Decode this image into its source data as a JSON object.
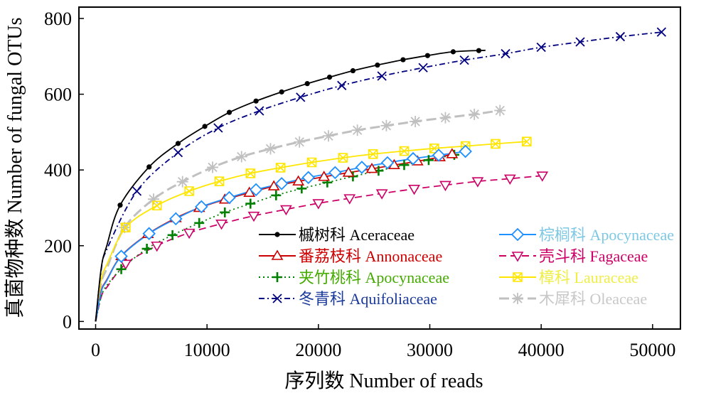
{
  "chart_data": {
    "type": "line",
    "title": "",
    "xlabel": "序列数 Number of reads",
    "ylabel": "真菌物种数 Number of fungal OTUs",
    "xlim": [
      -1500,
      52500
    ],
    "ylim": [
      -20,
      830
    ],
    "xticks": [
      0,
      10000,
      20000,
      30000,
      40000,
      50000
    ],
    "xtick_labels": [
      "0",
      "10000",
      "20000",
      "30000",
      "40000",
      "50000"
    ],
    "yticks": [
      0,
      200,
      400,
      600,
      800
    ],
    "ytick_labels": [
      "0",
      "200",
      "400",
      "600",
      "800"
    ],
    "grid": false,
    "legend_position": "center-right, two columns",
    "series": [
      {
        "name": "槭树科 Aceraceae",
        "color": "#000000",
        "dash": "",
        "marker": "dot",
        "marker_x": [
          2200,
          4800,
          7400,
          9800,
          12000,
          14400,
          16700,
          19000,
          21000,
          23100,
          25300,
          27600,
          29800,
          32100,
          34400
        ],
        "x": [
          0,
          500,
          1000,
          2200,
          4800,
          7400,
          9800,
          12000,
          14400,
          16700,
          19000,
          21000,
          23100,
          25300,
          27600,
          29800,
          32100,
          35000
        ],
        "y": [
          0,
          140,
          200,
          307,
          408,
          470,
          515,
          552,
          582,
          606,
          628,
          645,
          662,
          677,
          691,
          702,
          712,
          716
        ]
      },
      {
        "name": "番荔枝科 Annonaceae",
        "color": "#cc0000",
        "dash": "",
        "marker": "triangle-up",
        "marker_x": [
          2300,
          4700,
          7200,
          9300,
          11600,
          13800,
          16000,
          18200,
          20500,
          22700,
          24800,
          26800,
          28900,
          30900,
          32000
        ],
        "x": [
          0,
          500,
          1000,
          2300,
          4700,
          7200,
          9300,
          11600,
          13800,
          16000,
          18200,
          20500,
          22700,
          24800,
          26800,
          28900,
          30900,
          32000
        ],
        "y": [
          0,
          80,
          110,
          173,
          231,
          273,
          300,
          322,
          340,
          357,
          370,
          382,
          393,
          403,
          413,
          423,
          434,
          442
        ]
      },
      {
        "name": "夹竹桃科 Apocynaceae",
        "color": "#008000",
        "dash": "2,4",
        "marker": "plus",
        "marker_x": [
          2300,
          4600,
          6900,
          9300,
          11600,
          13900,
          16200,
          18500,
          20800,
          23100,
          25400,
          27700,
          29900,
          32200
        ],
        "x": [
          0,
          500,
          1000,
          2300,
          4600,
          6900,
          9300,
          11600,
          13900,
          16200,
          18500,
          20800,
          23100,
          25400,
          27700,
          29900,
          32200
        ],
        "y": [
          0,
          65,
          95,
          138,
          192,
          228,
          260,
          288,
          311,
          333,
          351,
          367,
          383,
          398,
          413,
          426,
          440
        ]
      },
      {
        "name": "冬青科 Aquifoliaceae",
        "color": "#000080",
        "dash": "8,4,2,4",
        "marker": "x",
        "marker_x": [
          3700,
          7400,
          11000,
          14700,
          18400,
          22100,
          25700,
          29400,
          33100,
          36800,
          40000,
          43500,
          47100,
          50800
        ],
        "x": [
          0,
          500,
          1000,
          3700,
          7400,
          11000,
          14700,
          18400,
          22100,
          25700,
          29400,
          33100,
          36800,
          40000,
          43500,
          47100,
          50800
        ],
        "y": [
          0,
          135,
          190,
          344,
          446,
          511,
          556,
          592,
          623,
          648,
          670,
          690,
          707,
          724,
          738,
          752,
          764
        ]
      },
      {
        "name": "棕榈科 Apocynaceae",
        "color": "#1e90ff",
        "dash": "",
        "marker": "diamond",
        "marker_x": [
          2300,
          4800,
          7200,
          9500,
          12000,
          14400,
          16700,
          19100,
          21500,
          23900,
          26200,
          28500,
          30800,
          33200
        ],
        "x": [
          0,
          500,
          1000,
          2300,
          4800,
          7200,
          9500,
          12000,
          14400,
          16700,
          19100,
          21500,
          23900,
          26200,
          28500,
          30800,
          33200
        ],
        "y": [
          0,
          78,
          108,
          172,
          232,
          271,
          303,
          327,
          348,
          364,
          380,
          393,
          407,
          419,
          430,
          439,
          449
        ]
      },
      {
        "name": "壳斗科 Fagaceae",
        "color": "#cc0066",
        "dash": "10,6",
        "marker": "triangle-down",
        "marker_x": [
          2700,
          5500,
          8400,
          11300,
          14200,
          17100,
          20000,
          22800,
          25700,
          28600,
          31400,
          34300,
          37200,
          40100
        ],
        "x": [
          0,
          500,
          1000,
          2700,
          5500,
          8400,
          11300,
          14200,
          17100,
          20000,
          22800,
          25700,
          28600,
          31400,
          34300,
          37200,
          40100
        ],
        "y": [
          0,
          65,
          90,
          152,
          200,
          234,
          258,
          279,
          296,
          312,
          325,
          338,
          350,
          360,
          370,
          377,
          385
        ]
      },
      {
        "name": "樟科 Lauraceae",
        "color": "#ffe600",
        "dash": "",
        "marker": "square-x",
        "marker_x": [
          2700,
          5500,
          8400,
          11100,
          13900,
          16600,
          19400,
          22200,
          24900,
          27700,
          30400,
          33200,
          35900,
          38700
        ],
        "x": [
          0,
          500,
          1000,
          2700,
          5500,
          8400,
          11100,
          13900,
          16600,
          19400,
          22200,
          24900,
          27700,
          30400,
          33200,
          35900,
          38700
        ],
        "y": [
          0,
          110,
          150,
          248,
          306,
          344,
          370,
          391,
          406,
          420,
          432,
          442,
          450,
          457,
          463,
          469,
          475
        ]
      },
      {
        "name": "木犀科 Oleaceae",
        "color": "#c0c0c0",
        "dash": "14,6",
        "marker": "asterisk",
        "marker_x": [
          2600,
          5200,
          7800,
          10500,
          13100,
          15700,
          18300,
          20900,
          23500,
          26100,
          28700,
          31400,
          34000,
          36300
        ],
        "x": [
          0,
          500,
          1000,
          2600,
          5200,
          7800,
          10500,
          13100,
          15700,
          18300,
          20900,
          23500,
          26100,
          28700,
          31400,
          34000,
          36300
        ],
        "y": [
          0,
          100,
          140,
          248,
          323,
          369,
          407,
          435,
          456,
          474,
          490,
          505,
          517,
          528,
          538,
          547,
          557
        ]
      }
    ]
  }
}
